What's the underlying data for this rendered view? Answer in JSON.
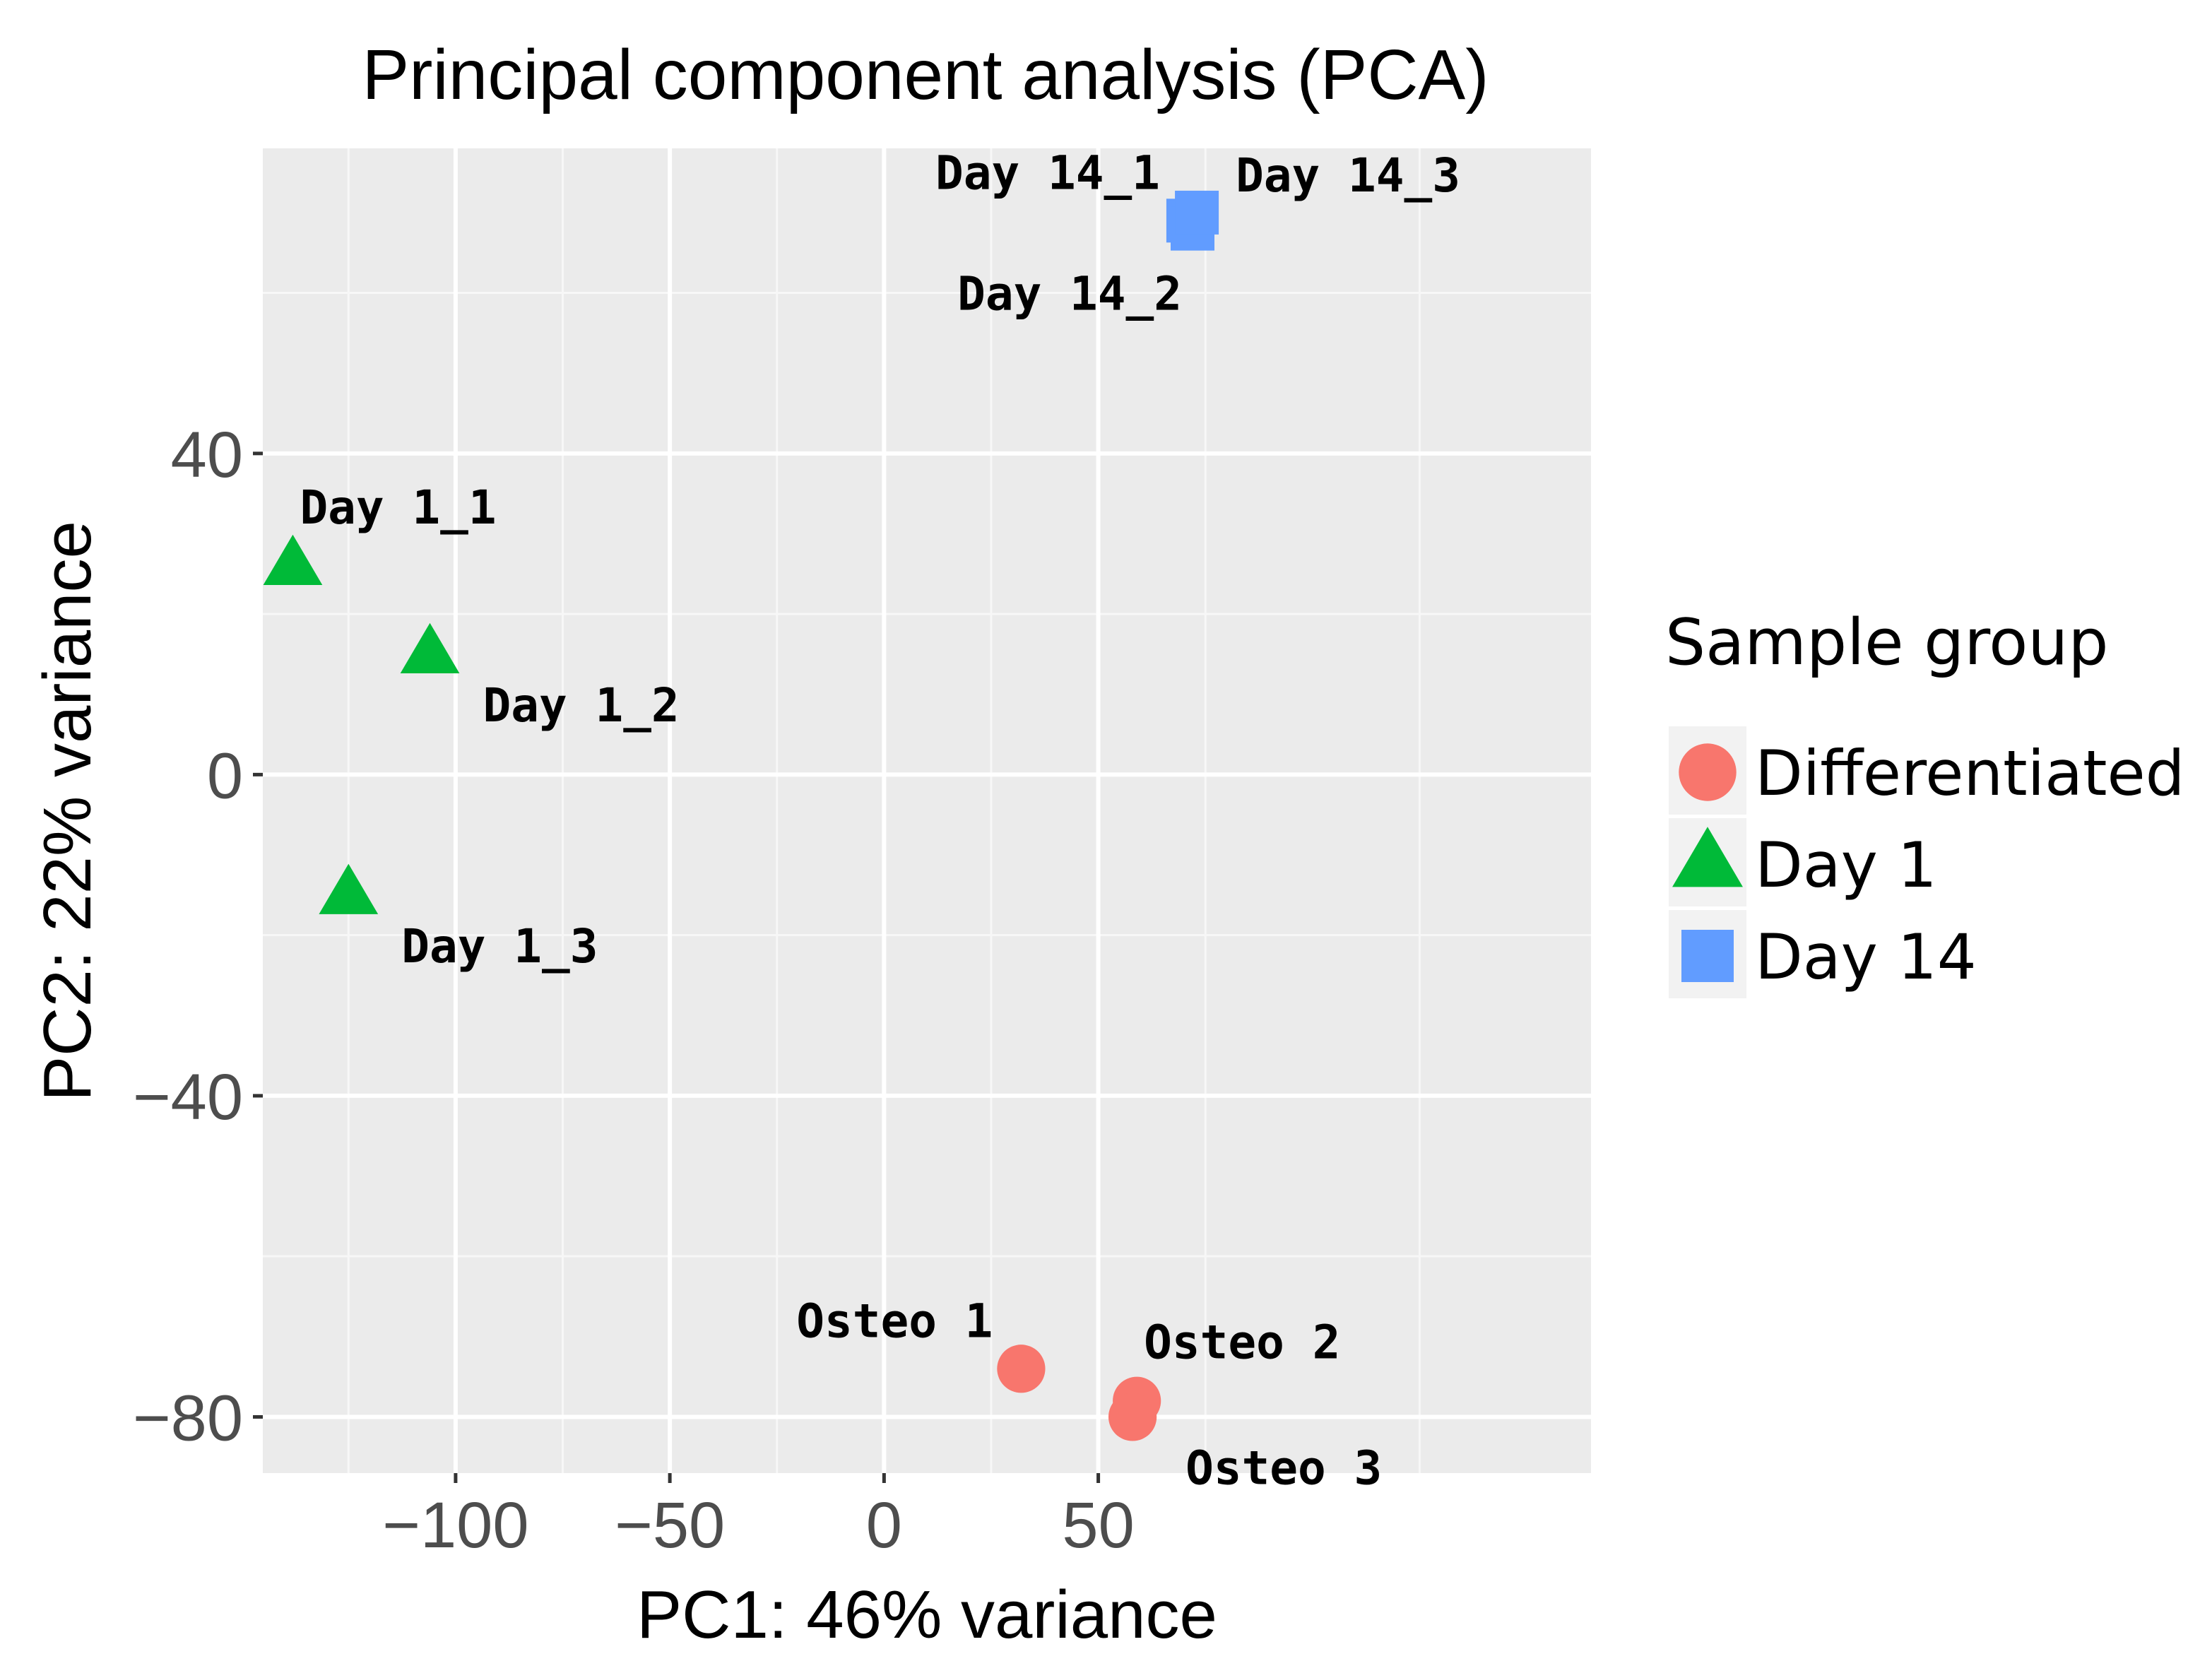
{
  "chart_data": {
    "type": "scatter",
    "title": "Principal component analysis (PCA)",
    "xlabel": "PC1: 46% variance",
    "ylabel": "PC2: 22% variance",
    "xlim": [
      -145,
      165
    ],
    "ylim": [
      -87,
      78
    ],
    "x_ticks": [
      -100,
      -50,
      0,
      50
    ],
    "x_tick_labels": [
      "−100",
      "−50",
      "0",
      "50"
    ],
    "y_ticks": [
      -80,
      -40,
      0,
      40
    ],
    "y_tick_labels": [
      "−80",
      "−40",
      "0",
      "40"
    ],
    "legend": {
      "title": "Sample group",
      "position": "right",
      "entries": [
        {
          "label": "Differentiated",
          "shape": "circle",
          "color": "#F8766D"
        },
        {
          "label": "Day 1",
          "shape": "triangle",
          "color": "#00BA38"
        },
        {
          "label": "Day 14",
          "shape": "square",
          "color": "#619CFF"
        }
      ]
    },
    "series": [
      {
        "name": "Differentiated",
        "shape": "circle",
        "color": "#F8766D",
        "points": [
          {
            "label": "Osteo 1",
            "x": 32,
            "y": -74,
            "label_pos": "upper-left"
          },
          {
            "label": "Osteo 2",
            "x": 59,
            "y": -78,
            "label_pos": "upper-right"
          },
          {
            "label": "Osteo 3",
            "x": 58,
            "y": -80,
            "label_pos": "lower-right"
          }
        ]
      },
      {
        "name": "Day 1",
        "shape": "triangle",
        "color": "#00BA38",
        "points": [
          {
            "label": "Day 1_1",
            "x": -138,
            "y": 26,
            "label_pos": "upper-right"
          },
          {
            "label": "Day 1_2",
            "x": -106,
            "y": 15,
            "label_pos": "lower-right"
          },
          {
            "label": "Day 1_3",
            "x": -125,
            "y": -15,
            "label_pos": "lower-right"
          }
        ]
      },
      {
        "name": "Day 14",
        "shape": "square",
        "color": "#619CFF",
        "points": [
          {
            "label": "Day 14_1",
            "x": 71,
            "y": 69,
            "label_pos": "upper-left"
          },
          {
            "label": "Day 14_2",
            "x": 72,
            "y": 68,
            "label_pos": "lower-left"
          },
          {
            "label": "Day 14_3",
            "x": 73,
            "y": 70,
            "label_pos": "right"
          }
        ]
      }
    ]
  }
}
